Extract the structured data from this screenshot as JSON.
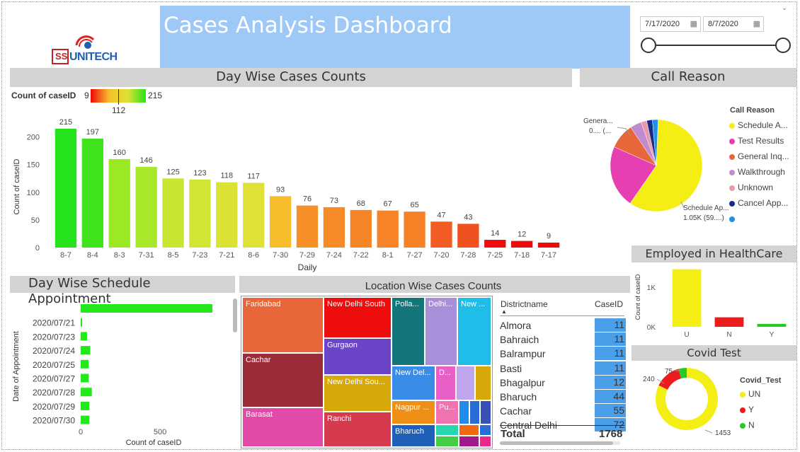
{
  "header": {
    "title": "Cases Analysis Dashboard",
    "logo_text": "UNITECH",
    "logo_mark": "SS",
    "date_start": "7/17/2020",
    "date_end": "8/7/2020",
    "accent": "#9ec9f7"
  },
  "day_wise": {
    "title": "Day Wise Cases Counts",
    "legend_label": "Count of caseID",
    "legend_min": "9",
    "legend_mid": "112",
    "legend_max": "215",
    "chart_data": {
      "type": "bar",
      "categories": [
        "8-7",
        "8-4",
        "8-3",
        "7-31",
        "8-5",
        "7-23",
        "7-21",
        "8-6",
        "7-30",
        "7-29",
        "7-24",
        "7-22",
        "8-1",
        "7-27",
        "7-20",
        "7-28",
        "7-25",
        "7-18",
        "7-17"
      ],
      "values": [
        215,
        197,
        160,
        146,
        125,
        123,
        118,
        117,
        93,
        76,
        73,
        68,
        67,
        65,
        47,
        43,
        14,
        12,
        9
      ],
      "xlabel": "Daily",
      "ylabel": "Count of caseID",
      "ylim": [
        0,
        220
      ],
      "yticks": [
        "0",
        "50",
        "100",
        "150",
        "200"
      ],
      "colors": [
        "#26e21d",
        "#3fe31c",
        "#9be923",
        "#a8e82a",
        "#c9e532",
        "#d2e434",
        "#dbe236",
        "#e0e137",
        "#f7bd2b",
        "#f58f26",
        "#f58a26",
        "#f68527",
        "#f68327",
        "#f68127",
        "#f25c22",
        "#f0521f",
        "#ed0d0d",
        "#ed0b0b",
        "#ed0a0a"
      ]
    }
  },
  "call_reason": {
    "title": "Call Reason",
    "legend_title": "Call Reason",
    "legend": [
      {
        "label": "Schedule A...",
        "color": "#f5ee15"
      },
      {
        "label": "Test Results",
        "color": "#e53fb1"
      },
      {
        "label": "General Inq...",
        "color": "#e8663a"
      },
      {
        "label": "Walkthrough",
        "color": "#c08ccf"
      },
      {
        "label": "Unknown",
        "color": "#e89aa8"
      },
      {
        "label": "Cancel App...",
        "color": "#142c8c"
      },
      {
        "label": "",
        "color": "#1e90e8"
      }
    ],
    "callout_left_1": "Genera...",
    "callout_left_2": "0.... (...",
    "callout_right_1": "Schedule Ap...",
    "callout_right_2": "1.05K (59....)",
    "chart_data": {
      "type": "pie",
      "categories": [
        "Schedule A...",
        "Test Results",
        "General Inq...",
        "Walkthrough",
        "Unknown",
        "Cancel App...",
        ""
      ],
      "values": [
        59,
        22,
        9,
        4,
        2,
        2,
        2
      ]
    }
  },
  "employed": {
    "title": "Employed in HealthCare",
    "chart_data": {
      "type": "bar",
      "categories": [
        "U",
        "N",
        "Y"
      ],
      "values": [
        1453,
        240,
        75
      ],
      "ylabel": "Count of caseID",
      "ylim": [
        0,
        1500
      ],
      "yticks": [
        "0K",
        "1K"
      ],
      "colors": [
        "#f5ee15",
        "#ed1c1c",
        "#22cc22"
      ]
    }
  },
  "covid": {
    "title": "Covid Test",
    "legend_title": "Covid_Test",
    "legend": [
      {
        "label": "UN",
        "color": "#f5ee15"
      },
      {
        "label": "Y",
        "color": "#ed1c1c"
      },
      {
        "label": "N",
        "color": "#22cc22"
      }
    ],
    "chart_data": {
      "type": "pie",
      "categories": [
        "UN",
        "Y",
        "N"
      ],
      "values": [
        1453,
        240,
        75
      ],
      "labels": [
        "1453",
        "240",
        "75"
      ]
    }
  },
  "schedule": {
    "title": "Day Wise Schedule Appointment",
    "chart_data": {
      "type": "bar",
      "orientation": "horizontal",
      "categories": [
        "",
        "2020/07/21",
        "2020/07/23",
        "2020/07/24",
        "2020/07/25",
        "2020/07/27",
        "2020/07/28",
        "2020/07/29",
        "2020/07/30"
      ],
      "values": [
        830,
        5,
        40,
        60,
        50,
        50,
        70,
        55,
        55
      ],
      "xlabel": "Count of caseID",
      "ylabel": "Date of Appointment",
      "xlim": [
        0,
        850
      ],
      "xticks": [
        "0",
        "500"
      ],
      "color": "#22e81c"
    }
  },
  "location": {
    "title": "Location Wise Cases Counts",
    "tiles": [
      "Faridabad",
      "New Delhi South",
      "Polla...",
      "Delhi...",
      "New ...",
      "Gurgaon",
      "Cachar",
      "New Del...",
      "D...",
      "New Delhi Sou...",
      "Barasat",
      "Ranchi",
      "Nagpur ...",
      "Pu...",
      "Bharuch"
    ]
  },
  "district_table": {
    "col_name": "Districtname",
    "col_value": "CaseID",
    "rows": [
      {
        "name": "Almora",
        "value": "11"
      },
      {
        "name": "Bahraich",
        "value": "11"
      },
      {
        "name": "Balrampur",
        "value": "11"
      },
      {
        "name": "Basti",
        "value": "11"
      },
      {
        "name": "Bhagalpur",
        "value": "12"
      },
      {
        "name": "Bharuch",
        "value": "44"
      },
      {
        "name": "Cachar",
        "value": "55"
      },
      {
        "name": "Central Delhi",
        "value": "72"
      }
    ],
    "total_label": "Total",
    "total_value": "1768"
  }
}
